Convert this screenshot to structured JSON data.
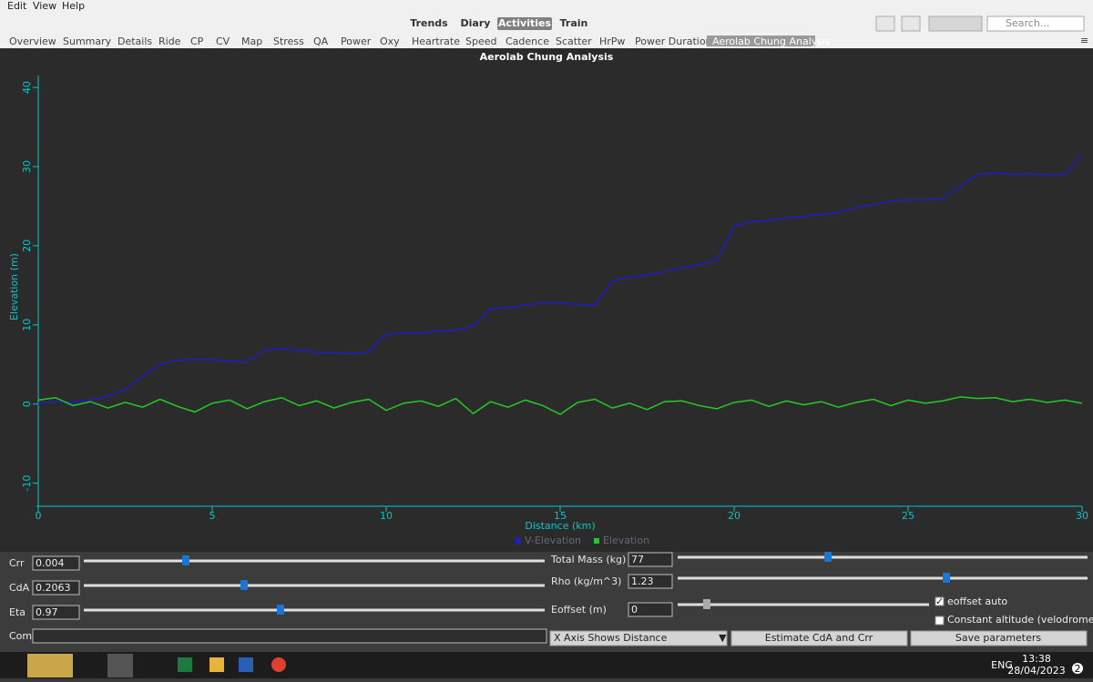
{
  "menu": [
    "Edit",
    "View",
    "Help"
  ],
  "views": [
    "Trends",
    "Diary",
    "Activities",
    "Train"
  ],
  "search_placeholder": "Search...",
  "tabs": [
    "Overview",
    "Summary",
    "Details",
    "Ride",
    "CP",
    "CV",
    "Map",
    "Stress",
    "QA",
    "Power",
    "Oxy",
    "Heartrate",
    "Speed",
    "Cadence",
    "Scatter",
    "HrPw",
    "Power Duration",
    "Aerolab Chung Analysis"
  ],
  "chart_data": {
    "type": "line",
    "title": "Aerolab Chung Analysis",
    "xlabel": "Distance (km)",
    "ylabel": "Elevation (m)",
    "x": [
      0,
      0.5,
      1,
      1.5,
      2,
      2.5,
      3,
      3.5,
      4,
      4.5,
      5,
      5.5,
      6,
      6.5,
      7,
      7.5,
      8,
      8.5,
      9,
      9.5,
      10,
      10.5,
      11,
      11.5,
      12,
      12.5,
      13,
      13.5,
      14,
      14.5,
      15,
      15.5,
      16,
      16.5,
      17,
      17.5,
      18,
      18.5,
      19,
      19.5,
      20,
      20.5,
      21,
      21.5,
      22,
      22.5,
      23,
      23.5,
      24,
      24.5,
      25,
      25.5,
      26,
      26.5,
      27,
      27.5,
      28,
      28.5,
      29,
      29.5,
      30
    ],
    "series": [
      {
        "name": "V-Elevation",
        "color": "#1c1cc8",
        "values": [
          0,
          0.3,
          0.2,
          0.5,
          1,
          1.8,
          3.5,
          5,
          5.5,
          5.6,
          5.6,
          5.4,
          5.3,
          6.8,
          7,
          6.8,
          6.5,
          6.5,
          6.3,
          6.6,
          8.8,
          9,
          9,
          9.2,
          9.3,
          9.8,
          12,
          12.2,
          12.5,
          12.8,
          12.8,
          12.6,
          12.5,
          15.5,
          16,
          16.3,
          16.7,
          17.2,
          17.6,
          18.2,
          22.5,
          23,
          23.2,
          23.5,
          23.7,
          23.9,
          24.2,
          24.8,
          25.2,
          25.6,
          25.8,
          25.8,
          26,
          27.5,
          29,
          29.2,
          29,
          29.1,
          29,
          29,
          31.5
        ]
      },
      {
        "name": "Elevation",
        "color": "#22cc22",
        "values": [
          0.5,
          0.8,
          -0.2,
          0.3,
          -0.5,
          0.2,
          -0.4,
          0.6,
          -0.3,
          -1,
          0.1,
          0.5,
          -0.6,
          0.3,
          0.8,
          -0.2,
          0.4,
          -0.5,
          0.2,
          0.6,
          -0.8,
          0.1,
          0.4,
          -0.3,
          0.7,
          -1.2,
          0.3,
          -0.4,
          0.5,
          -0.2,
          -1.3,
          0.2,
          0.6,
          -0.5,
          0.1,
          -0.7,
          0.3,
          0.4,
          -0.2,
          -0.6,
          0.2,
          0.5,
          -0.3,
          0.4,
          -0.1,
          0.3,
          -0.4,
          0.2,
          0.6,
          -0.2,
          0.5,
          0.1,
          0.4,
          0.9,
          0.7,
          0.8,
          0.3,
          0.6,
          0.2,
          0.5,
          0.1
        ]
      }
    ],
    "xlim": [
      0,
      30
    ],
    "xticks": [
      0,
      5,
      10,
      15,
      20,
      25,
      30
    ],
    "ylim": [
      -12,
      41.5
    ],
    "yticks": [
      -10,
      0,
      10,
      20,
      30,
      40
    ],
    "axis_color": "#00c8c8",
    "background": "#2b2b2b",
    "legend": "bottom"
  },
  "controls": {
    "crr": {
      "label": "Crr",
      "value": 0.004
    },
    "cda": {
      "label": "CdA",
      "value": 0.2063
    },
    "eta": {
      "label": "Eta",
      "value": 0.97
    },
    "mass": {
      "label": "Total Mass (kg)",
      "value": 77
    },
    "rho": {
      "label": "Rho (kg/m^3)",
      "value": 1.23
    },
    "eoffset": {
      "label": "Eoffset (m)",
      "value": 0
    },
    "eoffset_auto": "eoffset auto",
    "constant_altitude": "Constant altitude (velodrome,...)",
    "comment": "Com",
    "x_axis": "X Axis Shows Distance",
    "estimate": "Estimate CdA and Crr",
    "save": "Save parameters"
  },
  "taskbar": {
    "language": "ENG",
    "time": "13:38",
    "date": "28/04/2023",
    "notifications": 2
  }
}
